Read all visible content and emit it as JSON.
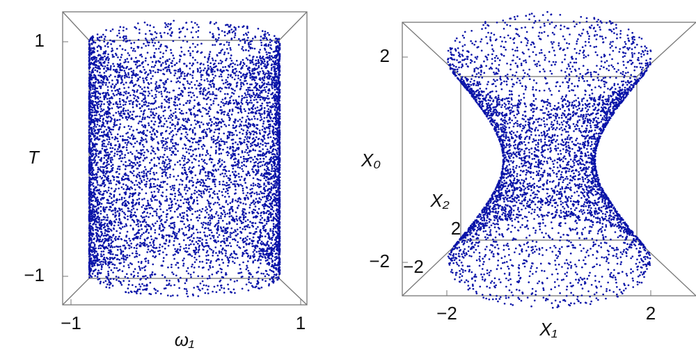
{
  "chart_data": [
    {
      "type": "scatter3d",
      "shape": "cylinder",
      "color": "#0a14a8",
      "x_label": "ω₁",
      "y_label": "T",
      "xlim": [
        -1,
        1
      ],
      "xticks": [
        {
          "value": -1,
          "label": "−1"
        },
        1
      ],
      "ylim": [
        -1,
        1
      ],
      "yticks": [
        {
          "value": -1,
          "label": "−1"
        },
        1
      ]
    },
    {
      "type": "scatter3d",
      "shape": "hyperboloid",
      "color": "#0a14a8",
      "x_label": "X₁",
      "y_label": "X₀",
      "z_label": "X₂",
      "xlim": [
        -2,
        2
      ],
      "xticks": [
        {
          "value": -2,
          "label": "−2"
        },
        2
      ],
      "ylim": [
        -2,
        2
      ],
      "yticks": [
        {
          "value": -2,
          "label": "−2"
        },
        2
      ],
      "zlim": [
        -2,
        2
      ],
      "zticks": [
        {
          "value": -2,
          "label": "−2"
        },
        2
      ]
    }
  ]
}
